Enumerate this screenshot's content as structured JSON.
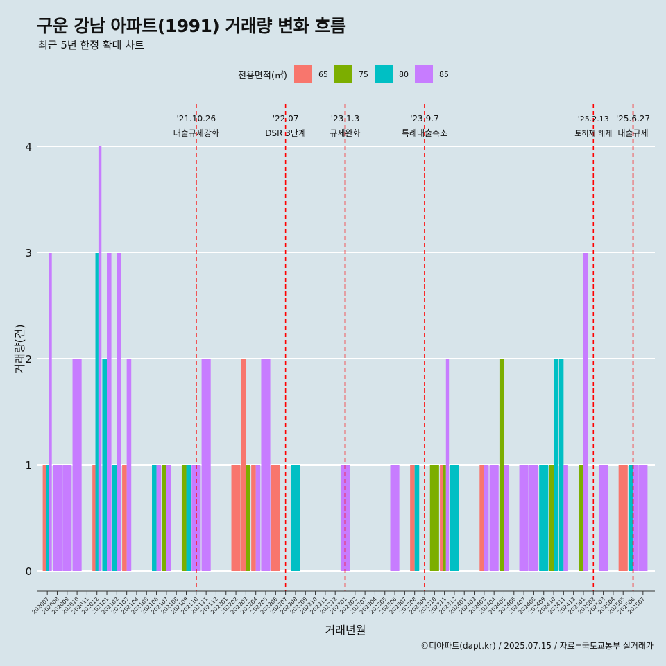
{
  "title": "구운 강남 아파트(1991) 거래량 변화 흐름",
  "subtitle": "최근 5년 한정 확대 차트",
  "caption": "©디아파트(dapt.kr) / 2025.07.15 / 자료=국토교통부 실거래가",
  "colors": {
    "background": "#d7e4ea",
    "gridline": "#ffffff",
    "event_line": "#ff0000",
    "axis": "#333333"
  },
  "chart_data": {
    "type": "bar",
    "xlabel": "거래년월",
    "ylabel": "거래량(건)",
    "ylim": [
      0,
      4
    ],
    "yticks": [
      0,
      1,
      2,
      3,
      4
    ],
    "legend": {
      "title": "전용면적(㎡)",
      "position": "top"
    },
    "categories": [
      "202007",
      "202008",
      "202009",
      "202010",
      "202011",
      "202012",
      "202101",
      "202102",
      "202103",
      "202104",
      "202105",
      "202106",
      "202107",
      "202108",
      "202109",
      "202110",
      "202111",
      "202112",
      "202201",
      "202202",
      "202203",
      "202204",
      "202205",
      "202206",
      "202207",
      "202208",
      "202209",
      "202210",
      "202211",
      "202212",
      "202301",
      "202302",
      "202303",
      "202304",
      "202305",
      "202306",
      "202307",
      "202308",
      "202309",
      "202310",
      "202311",
      "202312",
      "202401",
      "202402",
      "202403",
      "202404",
      "202405",
      "202406",
      "202407",
      "202408",
      "202409",
      "202410",
      "202411",
      "202412",
      "202501",
      "202502",
      "202503",
      "202504",
      "202505",
      "202506",
      "202507"
    ],
    "series": [
      {
        "name": "65",
        "color": "#f8766d",
        "values": [
          1,
          0,
          0,
          0,
          0,
          1,
          0,
          0,
          1,
          0,
          0,
          0,
          0,
          0,
          0,
          0,
          0,
          0,
          0,
          1,
          2,
          1,
          0,
          1,
          0,
          0,
          0,
          0,
          0,
          0,
          0,
          0,
          0,
          0,
          0,
          0,
          0,
          1,
          0,
          0,
          1,
          0,
          0,
          0,
          1,
          0,
          0,
          0,
          0,
          0,
          0,
          0,
          0,
          0,
          0,
          0,
          0,
          0,
          1,
          0,
          0
        ]
      },
      {
        "name": "75",
        "color": "#7cae00",
        "values": [
          0,
          0,
          0,
          0,
          0,
          0,
          0,
          0,
          0,
          0,
          0,
          0,
          1,
          0,
          1,
          0,
          0,
          0,
          0,
          0,
          1,
          0,
          0,
          0,
          0,
          0,
          0,
          0,
          0,
          0,
          0,
          0,
          0,
          0,
          0,
          0,
          0,
          0,
          0,
          1,
          1,
          0,
          0,
          0,
          0,
          0,
          2,
          0,
          0,
          0,
          0,
          1,
          0,
          0,
          1,
          0,
          0,
          0,
          0,
          0,
          0
        ]
      },
      {
        "name": "80",
        "color": "#00bfc4",
        "values": [
          1,
          0,
          0,
          0,
          0,
          3,
          2,
          1,
          0,
          0,
          0,
          1,
          0,
          0,
          1,
          0,
          0,
          0,
          0,
          0,
          0,
          0,
          0,
          0,
          0,
          1,
          0,
          0,
          0,
          0,
          0,
          0,
          0,
          0,
          0,
          0,
          0,
          1,
          0,
          0,
          0,
          1,
          0,
          0,
          0,
          0,
          0,
          0,
          0,
          0,
          1,
          2,
          2,
          0,
          0,
          0,
          0,
          0,
          0,
          1,
          0
        ]
      },
      {
        "name": "85",
        "color": "#c77cff",
        "values": [
          3,
          1,
          1,
          2,
          0,
          4,
          3,
          3,
          2,
          0,
          0,
          1,
          1,
          0,
          0,
          1,
          2,
          0,
          0,
          0,
          0,
          1,
          2,
          0,
          0,
          0,
          0,
          0,
          0,
          0,
          1,
          0,
          0,
          0,
          0,
          1,
          0,
          0,
          0,
          0,
          2,
          0,
          0,
          0,
          1,
          1,
          1,
          0,
          1,
          1,
          0,
          0,
          1,
          0,
          3,
          0,
          1,
          0,
          0,
          1,
          1
        ]
      }
    ],
    "events": [
      {
        "date": "'21.10.26",
        "label": "대출규제강화",
        "x": "202110"
      },
      {
        "date": "'22.07",
        "label": "DSR 3단계",
        "x": "202207"
      },
      {
        "date": "'23.1.3",
        "label": "규제완화",
        "x": "202301"
      },
      {
        "date": "'23.9.7",
        "label": "특례대출축소",
        "x": "202309"
      },
      {
        "date": "'25.2.13",
        "label": "토허제 해제",
        "x": "202502"
      },
      {
        "date": "'25.6.27",
        "label": "대출규제",
        "x": "202506"
      }
    ]
  }
}
